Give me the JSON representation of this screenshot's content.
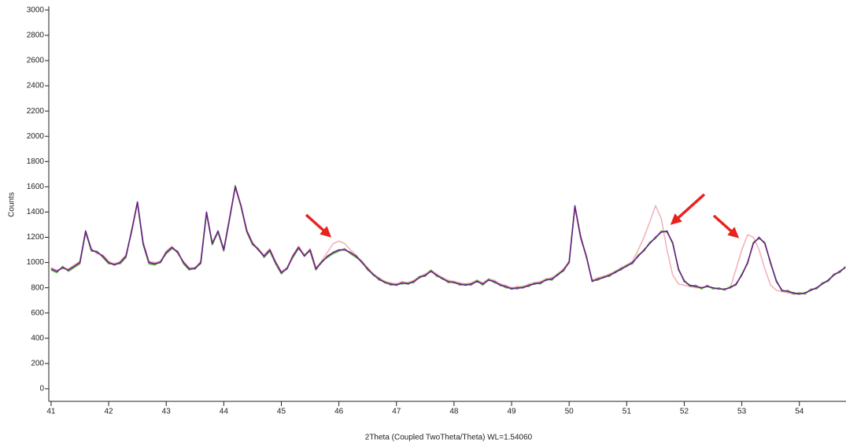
{
  "chart_data": {
    "type": "line",
    "x_label": "2Theta (Coupled TwoTheta/Theta) WL=1.54060",
    "y_label": "Counts",
    "xlim": [
      40.96,
      54.81
    ],
    "ylim": [
      -100,
      3030
    ],
    "xticks": [
      41,
      42,
      43,
      44,
      45,
      46,
      47,
      48,
      49,
      50,
      51,
      52,
      53,
      54
    ],
    "yticks": [
      0,
      200,
      400,
      600,
      800,
      1000,
      1200,
      1400,
      1600,
      1800,
      2000,
      2200,
      2400,
      2600,
      2800,
      3000
    ],
    "x": [
      41.0,
      41.1,
      41.2,
      41.3,
      41.4,
      41.5,
      41.6,
      41.7,
      41.8,
      41.9,
      42.0,
      42.1,
      42.2,
      42.3,
      42.4,
      42.5,
      42.6,
      42.7,
      42.8,
      42.9,
      43.0,
      43.1,
      43.2,
      43.3,
      43.4,
      43.5,
      43.6,
      43.7,
      43.8,
      43.9,
      44.0,
      44.1,
      44.2,
      44.3,
      44.4,
      44.5,
      44.6,
      44.7,
      44.8,
      44.9,
      45.0,
      45.1,
      45.2,
      45.3,
      45.4,
      45.5,
      45.6,
      45.7,
      45.8,
      45.9,
      46.0,
      46.1,
      46.2,
      46.3,
      46.4,
      46.5,
      46.6,
      46.7,
      46.8,
      46.9,
      47.0,
      47.1,
      47.2,
      47.3,
      47.4,
      47.5,
      47.6,
      47.7,
      47.8,
      47.9,
      48.0,
      48.1,
      48.2,
      48.3,
      48.4,
      48.5,
      48.6,
      48.7,
      48.8,
      48.9,
      49.0,
      49.1,
      49.2,
      49.3,
      49.4,
      49.5,
      49.6,
      49.7,
      49.8,
      49.9,
      50.0,
      50.1,
      50.2,
      50.3,
      50.4,
      50.5,
      50.6,
      50.7,
      50.8,
      50.9,
      51.0,
      51.1,
      51.2,
      51.3,
      51.4,
      51.5,
      51.6,
      51.7,
      51.8,
      51.9,
      52.0,
      52.1,
      52.2,
      52.3,
      52.4,
      52.5,
      52.6,
      52.7,
      52.8,
      52.9,
      53.0,
      53.1,
      53.2,
      53.3,
      53.4,
      53.5,
      53.6,
      53.7,
      53.8,
      53.9,
      54.0,
      54.1,
      54.2,
      54.3,
      54.4,
      54.5,
      54.6,
      54.7,
      54.8
    ],
    "series": [
      {
        "color": "#f4b2bc",
        "values": [
          960,
          940,
          950,
          950,
          980,
          1010,
          1230,
          1110,
          1070,
          1060,
          1010,
          990,
          1010,
          1060,
          1240,
          1470,
          1160,
          1010,
          1000,
          1010,
          1090,
          1130,
          1070,
          1010,
          960,
          960,
          1010,
          1380,
          1160,
          1240,
          1110,
          1340,
          1590,
          1440,
          1260,
          1160,
          1110,
          1060,
          1110,
          1010,
          930,
          960,
          1060,
          1130,
          1060,
          1110,
          960,
          1010,
          1080,
          1150,
          1170,
          1150,
          1100,
          1060,
          1010,
          960,
          910,
          880,
          850,
          840,
          830,
          850,
          840,
          860,
          890,
          910,
          940,
          910,
          880,
          860,
          850,
          840,
          830,
          840,
          860,
          840,
          870,
          860,
          830,
          820,
          800,
          810,
          810,
          830,
          840,
          850,
          870,
          880,
          910,
          950,
          1010,
          1430,
          1190,
          1040,
          860,
          880,
          890,
          910,
          930,
          960,
          980,
          1010,
          1100,
          1200,
          1320,
          1450,
          1350,
          1100,
          900,
          830,
          820,
          810,
          800,
          800,
          810,
          800,
          790,
          790,
          800,
          950,
          1100,
          1220,
          1200,
          1100,
          950,
          820,
          780,
          770,
          760,
          750,
          750,
          760,
          780,
          800,
          830,
          860,
          900,
          930,
          960
        ]
      },
      {
        "color": "#5cb83a",
        "values": [
          940,
          920,
          970,
          930,
          960,
          990,
          1240,
          1090,
          1090,
          1040,
          990,
          990,
          990,
          1040,
          1260,
          1470,
          1140,
          990,
          980,
          1010,
          1070,
          1110,
          1090,
          990,
          940,
          960,
          990,
          1390,
          1140,
          1240,
          1090,
          1340,
          1610,
          1440,
          1240,
          1140,
          1110,
          1040,
          1090,
          990,
          910,
          960,
          1040,
          1110,
          1060,
          1090,
          940,
          1010,
          1040,
          1070,
          1090,
          1110,
          1070,
          1040,
          1010,
          940,
          910,
          860,
          850,
          820,
          830,
          830,
          840,
          840,
          890,
          890,
          940,
          890,
          880,
          840,
          850,
          820,
          830,
          820,
          860,
          820,
          870,
          840,
          830,
          800,
          800,
          790,
          810,
          810,
          840,
          830,
          870,
          860,
          910,
          930,
          1010,
          1440,
          1210,
          1040,
          860,
          860,
          890,
          890,
          930,
          940,
          980,
          990,
          1060,
          1090,
          1160,
          1190,
          1250,
          1240,
          1160,
          940,
          860,
          810,
          820,
          790,
          820,
          790,
          800,
          780,
          810,
          820,
          910,
          990,
          1160,
          1190,
          1160,
          990,
          860,
          770,
          780,
          750,
          760,
          750,
          790,
          790,
          840,
          850,
          910,
          920,
          970
        ]
      },
      {
        "color": "#6a1f8a",
        "values": [
          950,
          930,
          960,
          940,
          970,
          1000,
          1250,
          1100,
          1080,
          1050,
          1000,
          980,
          1000,
          1050,
          1250,
          1480,
          1150,
          1000,
          990,
          1000,
          1080,
          1120,
          1080,
          1000,
          950,
          950,
          1000,
          1400,
          1150,
          1250,
          1100,
          1350,
          1600,
          1450,
          1250,
          1150,
          1100,
          1050,
          1100,
          1000,
          920,
          950,
          1050,
          1120,
          1050,
          1100,
          950,
          1000,
          1050,
          1080,
          1100,
          1100,
          1080,
          1050,
          1000,
          950,
          900,
          870,
          840,
          830,
          820,
          840,
          830,
          850,
          880,
          900,
          930,
          900,
          870,
          850,
          840,
          830,
          820,
          830,
          850,
          830,
          860,
          850,
          820,
          810,
          790,
          800,
          800,
          820,
          830,
          840,
          860,
          870,
          900,
          940,
          1000,
          1450,
          1200,
          1050,
          850,
          870,
          880,
          900,
          920,
          950,
          970,
          1000,
          1050,
          1100,
          1150,
          1200,
          1240,
          1250,
          1150,
          950,
          850,
          820,
          810,
          800,
          810,
          800,
          790,
          790,
          800,
          830,
          900,
          1000,
          1150,
          1200,
          1150,
          1000,
          850,
          780,
          770,
          760,
          750,
          760,
          780,
          800,
          830,
          860,
          900,
          930,
          960
        ]
      }
    ]
  }
}
